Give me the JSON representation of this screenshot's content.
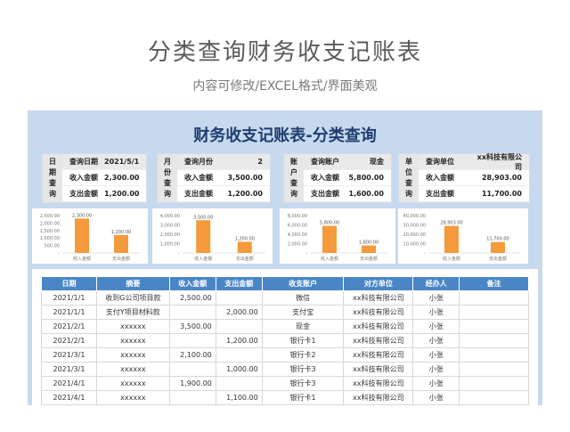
{
  "page": {
    "title": "分类查询财务收支记账表",
    "subtitle": "内容可修改/EXCEL格式/界面美观"
  },
  "sheet": {
    "title": "财务收支记账表-分类查询"
  },
  "cards": [
    {
      "vlabel": "日期查询",
      "rows": [
        {
          "k": "查询日期",
          "v": "2021/5/1"
        },
        {
          "k": "收入金额",
          "v": "2,300.00"
        },
        {
          "k": "支出金额",
          "v": "1,200.00"
        }
      ]
    },
    {
      "vlabel": "月份查询",
      "rows": [
        {
          "k": "查询月份",
          "v": "2"
        },
        {
          "k": "收入金额",
          "v": "3,500.00"
        },
        {
          "k": "支出金额",
          "v": "1,200.00"
        }
      ]
    },
    {
      "vlabel": "账户查询",
      "rows": [
        {
          "k": "查询账户",
          "v": "现金"
        },
        {
          "k": "收入金额",
          "v": "5,800.00"
        },
        {
          "k": "支出金额",
          "v": "1,600.00"
        }
      ]
    },
    {
      "vlabel": "单位查询",
      "rows": [
        {
          "k": "查询单位",
          "v": "xx科技有限公司"
        },
        {
          "k": "收入金额",
          "v": "28,903.00"
        },
        {
          "k": "支出金额",
          "v": "11,700.00"
        }
      ]
    }
  ],
  "chart_data": [
    {
      "type": "bar",
      "categories": [
        "收入金额",
        "支出金额"
      ],
      "values": [
        2300,
        1200
      ],
      "data_labels": [
        "2,300.00",
        "1,200.00"
      ],
      "yticks": [
        "2,500.00",
        "2,000.00",
        "1,500.00",
        "1,000.00",
        "500.00",
        "-"
      ],
      "ylim": [
        0,
        2500
      ],
      "bar_color": "#f59a3c"
    },
    {
      "type": "bar",
      "categories": [
        "收入金额",
        "支出金额"
      ],
      "values": [
        3500,
        1200
      ],
      "data_labels": [
        "3,500.00",
        "1,200.00"
      ],
      "yticks": [
        "4,000.00",
        "3,000.00",
        "2,000.00",
        "1,000.00",
        "-"
      ],
      "ylim": [
        0,
        4000
      ],
      "bar_color": "#f59a3c"
    },
    {
      "type": "bar",
      "categories": [
        "收入金额",
        "支出金额"
      ],
      "values": [
        5800,
        1600
      ],
      "data_labels": [
        "5,800.00",
        "1,600.00"
      ],
      "yticks": [
        "8,000.00",
        "6,000.00",
        "4,000.00",
        "2,000.00",
        "-"
      ],
      "ylim": [
        0,
        8000
      ],
      "bar_color": "#f59a3c"
    },
    {
      "type": "bar",
      "categories": [
        "收入金额",
        "支出金额"
      ],
      "values": [
        28903,
        11700
      ],
      "data_labels": [
        "28,903.00",
        "11,700.00"
      ],
      "yticks": [
        "40,000.00",
        "30,000.00",
        "20,000.00",
        "10,000.00",
        "-"
      ],
      "ylim": [
        0,
        40000
      ],
      "bar_color": "#f59a3c"
    }
  ],
  "table": {
    "headers": [
      "日期",
      "摘要",
      "收入金额",
      "支出金额",
      "收支账户",
      "对方单位",
      "经办人",
      "备注"
    ],
    "rows": [
      [
        "2021/1/1",
        "收到G公司项目款",
        "2,500.00",
        "",
        "微信",
        "xx科技有限公司",
        "小张",
        ""
      ],
      [
        "2021/1/1",
        "支付Y项目材料款",
        "",
        "2,000.00",
        "支付宝",
        "xx科技有限公司",
        "小张",
        ""
      ],
      [
        "2021/2/1",
        "xxxxxx",
        "3,500.00",
        "",
        "现金",
        "xx科技有限公司",
        "小张",
        ""
      ],
      [
        "2021/2/1",
        "xxxxxx",
        "",
        "1,200.00",
        "银行卡1",
        "xx科技有限公司",
        "小张",
        ""
      ],
      [
        "2021/3/1",
        "xxxxxx",
        "2,100.00",
        "",
        "银行卡2",
        "xx科技有限公司",
        "小张",
        ""
      ],
      [
        "2021/3/1",
        "xxxxxx",
        "",
        "1,000.00",
        "银行卡3",
        "xx科技有限公司",
        "小张",
        ""
      ],
      [
        "2021/4/1",
        "xxxxxx",
        "1,900.00",
        "",
        "银行卡3",
        "xx科技有限公司",
        "小张",
        ""
      ],
      [
        "2021/4/1",
        "xxxxxx",
        "",
        "1,100.00",
        "银行卡1",
        "xx科技有限公司",
        "小张",
        ""
      ]
    ]
  }
}
